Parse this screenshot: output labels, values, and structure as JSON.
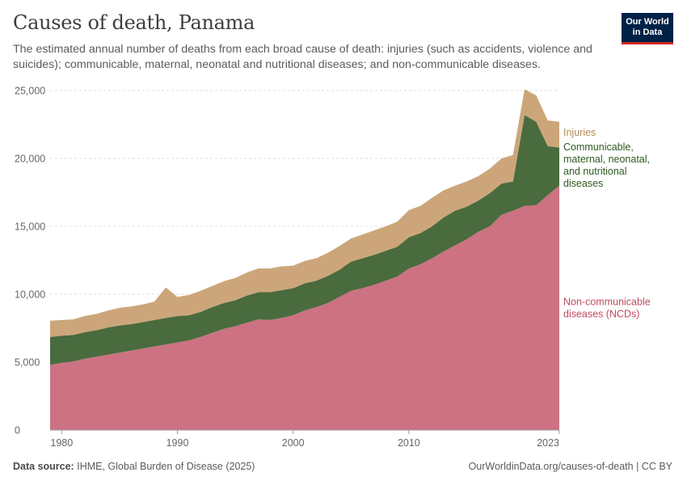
{
  "header": {
    "title": "Causes of death, Panama",
    "subtitle": "The estimated annual number of deaths from each broad cause of death: injuries (such as accidents, violence and suicides); communicable, maternal, neonatal and nutritional diseases; and non-communicable diseases.",
    "logo_line1": "Our World",
    "logo_line2": "in Data"
  },
  "footer": {
    "source_label": "Data source:",
    "source_text": "IHME, Global Burden of Disease (2025)",
    "url_text": "OurWorldinData.org/causes-of-death | CC BY"
  },
  "colors": {
    "ncd": "#cc7282",
    "communicable": "#4a6b3e",
    "injuries": "#cca67a",
    "ncd_label": "#c04a5e",
    "communicable_label": "#2e5a1f",
    "injuries_label": "#b58a55",
    "grid": "#dddddd",
    "axis": "#555555"
  },
  "chart_data": {
    "type": "area",
    "stacked": true,
    "title": "Causes of death, Panama",
    "xlabel": "",
    "ylabel": "",
    "xlim": [
      1979,
      2023
    ],
    "ylim": [
      0,
      25000
    ],
    "x_ticks": [
      1980,
      1990,
      2000,
      2010,
      2023
    ],
    "x_tick_labels": [
      "1980",
      "1990",
      "2000",
      "2010",
      "2023"
    ],
    "y_ticks": [
      0,
      5000,
      10000,
      15000,
      20000,
      25000
    ],
    "y_tick_labels": [
      "0",
      "5,000",
      "10,000",
      "15,000",
      "20,000",
      "25,000"
    ],
    "grid": true,
    "x": [
      1979,
      1980,
      1981,
      1982,
      1983,
      1984,
      1985,
      1986,
      1987,
      1988,
      1989,
      1990,
      1991,
      1992,
      1993,
      1994,
      1995,
      1996,
      1997,
      1998,
      1999,
      2000,
      2001,
      2002,
      2003,
      2004,
      2005,
      2006,
      2007,
      2008,
      2009,
      2010,
      2011,
      2012,
      2013,
      2014,
      2015,
      2016,
      2017,
      2018,
      2019,
      2020,
      2021,
      2022,
      2023
    ],
    "series": [
      {
        "name": "Non-communicable diseases (NCDs)",
        "label_lines": [
          "Non-communicable",
          "diseases (NCDs)"
        ],
        "values": [
          4800,
          4950,
          5050,
          5250,
          5400,
          5550,
          5700,
          5850,
          6000,
          6150,
          6300,
          6450,
          6600,
          6850,
          7150,
          7450,
          7650,
          7900,
          8150,
          8100,
          8250,
          8450,
          8800,
          9050,
          9350,
          9800,
          10250,
          10450,
          10700,
          11000,
          11300,
          11900,
          12200,
          12650,
          13150,
          13600,
          14050,
          14600,
          15000,
          15850,
          16150,
          16500,
          16550,
          17300,
          18000
        ]
      },
      {
        "name": "Communicable, maternal, neonatal, and nutritional diseases",
        "label_lines": [
          "Communicable,",
          "maternal, neonatal,",
          "and nutritional",
          "diseases"
        ],
        "values": [
          2050,
          2000,
          1950,
          1950,
          1950,
          2000,
          2000,
          1950,
          1950,
          1950,
          1950,
          1950,
          1850,
          1850,
          1900,
          1900,
          1900,
          2000,
          2000,
          2050,
          2050,
          2000,
          2000,
          1950,
          2000,
          2000,
          2150,
          2200,
          2200,
          2200,
          2200,
          2300,
          2300,
          2350,
          2500,
          2550,
          2400,
          2300,
          2450,
          2300,
          2150,
          6700,
          6150,
          3600,
          2800
        ]
      },
      {
        "name": "Injuries",
        "label_lines": [
          "Injuries"
        ],
        "values": [
          1200,
          1150,
          1150,
          1200,
          1200,
          1250,
          1300,
          1300,
          1300,
          1350,
          2250,
          1400,
          1500,
          1550,
          1550,
          1600,
          1650,
          1700,
          1750,
          1750,
          1750,
          1650,
          1650,
          1650,
          1700,
          1750,
          1700,
          1750,
          1800,
          1800,
          1850,
          2000,
          2000,
          2100,
          2000,
          1850,
          1850,
          1800,
          1800,
          1850,
          1950,
          1900,
          1950,
          1900,
          1900
        ]
      }
    ]
  }
}
